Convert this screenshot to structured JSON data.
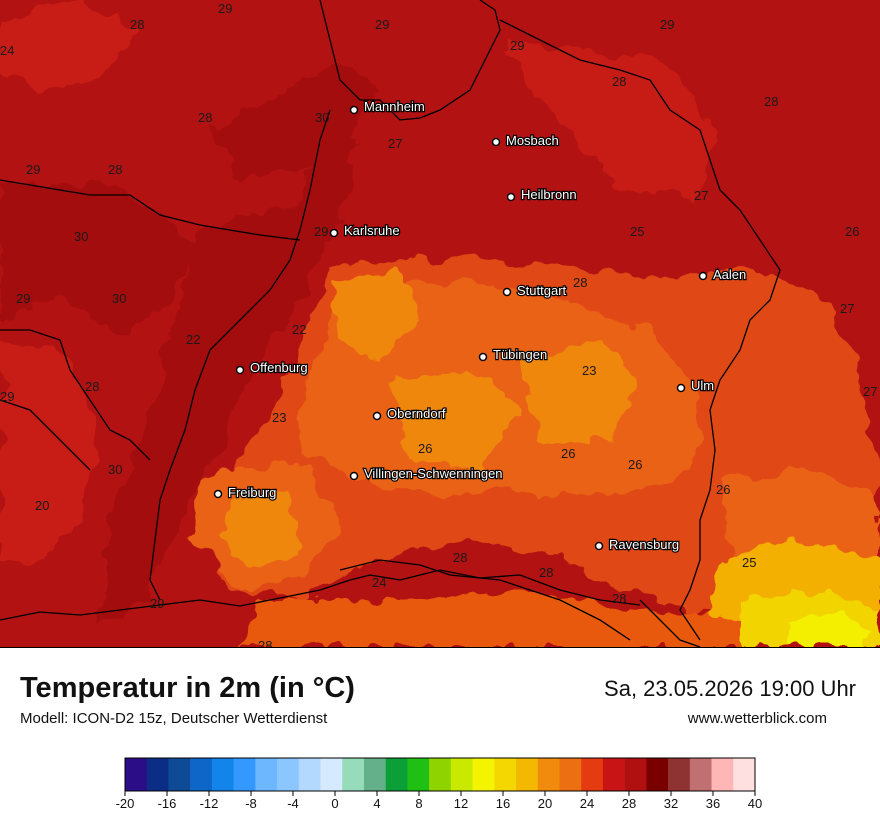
{
  "title": "Temperatur in 2m (in °C)",
  "model": "Modell: ICON-D2 15z, Deutscher Wetterdienst",
  "datetime": "Sa, 23.05.2026 19:00 Uhr",
  "website": "www.wetterblick.com",
  "cities": [
    {
      "name": "Mannheim"
    },
    {
      "name": "Mosbach"
    },
    {
      "name": "Heilbronn"
    },
    {
      "name": "Karlsruhe"
    },
    {
      "name": "Aalen"
    },
    {
      "name": "Stuttgart"
    },
    {
      "name": "Tübingen"
    },
    {
      "name": "Offenburg"
    },
    {
      "name": "Ulm"
    },
    {
      "name": "Oberndorf"
    },
    {
      "name": "Villingen-Schwenningen"
    },
    {
      "name": "Freiburg"
    },
    {
      "name": "Ravensburg"
    }
  ],
  "temperature_labels": [
    "29",
    "28",
    "29",
    "29",
    "24",
    "28",
    "30",
    "29",
    "28",
    "28",
    "29",
    "28",
    "27",
    "27",
    "25",
    "26",
    "30",
    "29",
    "28",
    "29",
    "30",
    "22",
    "27",
    "22",
    "28",
    "23",
    "27",
    "29",
    "23",
    "26",
    "26",
    "26",
    "30",
    "26",
    "20",
    "25",
    "28",
    "28",
    "28",
    "29",
    "24",
    "28"
  ],
  "legend": {
    "tick_labels": [
      "-20",
      "-16",
      "-12",
      "-8",
      "-4",
      "0",
      "4",
      "8",
      "12",
      "16",
      "20",
      "24",
      "28",
      "32",
      "36",
      "40"
    ],
    "colors": [
      "#2c0d88",
      "#0b2d86",
      "#0e4a96",
      "#0d66c8",
      "#1385ea",
      "#3399ff",
      "#6cb7ff",
      "#8cc6ff",
      "#b3d9ff",
      "#d6eaff",
      "#96dcbb",
      "#63b08a",
      "#0c9f38",
      "#1fbf14",
      "#8fd400",
      "#c9ea00",
      "#f4f400",
      "#f4d600",
      "#f4b800",
      "#f08b0e",
      "#ec6f12",
      "#e43c10",
      "#c81414",
      "#b01010",
      "#7a0000",
      "#8e3232",
      "#c07070",
      "#ffb6b6",
      "#ffe0e0"
    ]
  }
}
